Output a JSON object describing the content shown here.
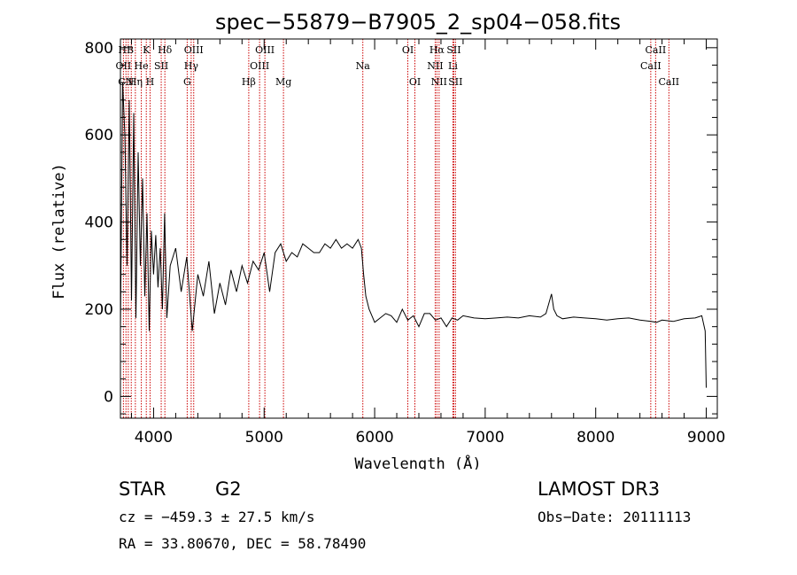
{
  "chart_data": {
    "type": "line",
    "title": "spec−55879−B7905_2_sp04−058.fits",
    "xlabel": "Wavelength (Å)",
    "ylabel": "Flux (relative)",
    "xlim": [
      3700,
      9100
    ],
    "ylim": [
      -50,
      820
    ],
    "x_ticks": [
      4000,
      5000,
      6000,
      7000,
      8000,
      9000
    ],
    "y_ticks": [
      0,
      200,
      400,
      600,
      800
    ],
    "series": [
      {
        "name": "flux",
        "x": [
          3700,
          3720,
          3740,
          3760,
          3780,
          3800,
          3820,
          3840,
          3860,
          3880,
          3900,
          3920,
          3940,
          3960,
          3980,
          4000,
          4020,
          4040,
          4060,
          4080,
          4100,
          4120,
          4150,
          4200,
          4250,
          4300,
          4350,
          4400,
          4450,
          4500,
          4550,
          4600,
          4650,
          4700,
          4750,
          4800,
          4850,
          4900,
          4950,
          5000,
          5050,
          5100,
          5150,
          5200,
          5250,
          5300,
          5350,
          5400,
          5450,
          5500,
          5550,
          5600,
          5650,
          5700,
          5750,
          5800,
          5850,
          5880,
          5900,
          5920,
          5950,
          6000,
          6050,
          6100,
          6150,
          6200,
          6250,
          6300,
          6350,
          6400,
          6450,
          6500,
          6550,
          6600,
          6650,
          6700,
          6750,
          6800,
          6900,
          7000,
          7100,
          7200,
          7300,
          7400,
          7500,
          7550,
          7600,
          7620,
          7650,
          7700,
          7800,
          7900,
          8000,
          8100,
          8200,
          8300,
          8400,
          8500,
          8550,
          8600,
          8700,
          8800,
          8900,
          8960,
          8990,
          9000
        ],
        "y": [
          150,
          720,
          600,
          300,
          680,
          220,
          650,
          180,
          560,
          300,
          500,
          230,
          420,
          150,
          380,
          280,
          370,
          250,
          340,
          200,
          420,
          180,
          300,
          340,
          240,
          320,
          150,
          280,
          230,
          310,
          190,
          260,
          210,
          290,
          240,
          300,
          260,
          310,
          290,
          330,
          240,
          330,
          350,
          310,
          330,
          320,
          350,
          340,
          330,
          330,
          350,
          340,
          360,
          340,
          350,
          340,
          360,
          340,
          280,
          230,
          200,
          170,
          180,
          190,
          185,
          170,
          200,
          175,
          185,
          160,
          190,
          190,
          175,
          180,
          160,
          180,
          175,
          185,
          180,
          178,
          180,
          182,
          180,
          185,
          182,
          190,
          235,
          200,
          185,
          178,
          182,
          180,
          178,
          175,
          178,
          180,
          175,
          172,
          170,
          175,
          172,
          178,
          180,
          185,
          150,
          20
        ]
      }
    ],
    "spectral_lines": [
      {
        "label": "HB",
        "wavelength": 3750,
        "row": 0
      },
      {
        "label": "K",
        "wavelength": 3934,
        "row": 0
      },
      {
        "label": "Hδ",
        "wavelength": 4102,
        "row": 0
      },
      {
        "label": "OIII",
        "wavelength": 4363,
        "row": 0
      },
      {
        "label": "OIII",
        "wavelength": 5007,
        "row": 0
      },
      {
        "label": "OI",
        "wavelength": 6300,
        "row": 0
      },
      {
        "label": "Hα",
        "wavelength": 6563,
        "row": 0
      },
      {
        "label": "SII",
        "wavelength": 6716,
        "row": 0
      },
      {
        "label": "CaII",
        "wavelength": 8542,
        "row": 0
      },
      {
        "label": "OII",
        "wavelength": 3727,
        "row": 1
      },
      {
        "label": "He",
        "wavelength": 3889,
        "row": 1
      },
      {
        "label": "SII",
        "wavelength": 4069,
        "row": 1
      },
      {
        "label": "Hγ",
        "wavelength": 4340,
        "row": 1
      },
      {
        "label": "OIII",
        "wavelength": 4959,
        "row": 1
      },
      {
        "label": "Na",
        "wavelength": 5893,
        "row": 1
      },
      {
        "label": "NII",
        "wavelength": 6548,
        "row": 1
      },
      {
        "label": "Li",
        "wavelength": 6708,
        "row": 1
      },
      {
        "label": "CaII",
        "wavelength": 8498,
        "row": 1
      },
      {
        "label": "CN",
        "wavelength": 3750,
        "row": 2
      },
      {
        "label": "Hη",
        "wavelength": 3835,
        "row": 2
      },
      {
        "label": "H",
        "wavelength": 3968,
        "row": 2
      },
      {
        "label": "G",
        "wavelength": 4304,
        "row": 2
      },
      {
        "label": "Hβ",
        "wavelength": 4861,
        "row": 2
      },
      {
        "label": "Mg",
        "wavelength": 5175,
        "row": 2
      },
      {
        "label": "OI",
        "wavelength": 6364,
        "row": 2
      },
      {
        "label": "NII",
        "wavelength": 6583,
        "row": 2
      },
      {
        "label": "SII",
        "wavelength": 6731,
        "row": 2
      },
      {
        "label": "CaII",
        "wavelength": 8662,
        "row": 2
      }
    ],
    "line_marker_wavelengths": [
      3727,
      3750,
      3771,
      3798,
      3835,
      3889,
      3934,
      3968,
      4069,
      4102,
      4304,
      4340,
      4363,
      4861,
      4959,
      5007,
      5175,
      5893,
      6300,
      6364,
      6548,
      6563,
      6583,
      6708,
      6716,
      6731,
      8498,
      8542,
      8662
    ],
    "line_color": "#000000",
    "marker_color": "#cc0000"
  },
  "info": {
    "object_class": "STAR",
    "subclass": "G2",
    "survey": "LAMOST DR3",
    "redshift": "cz = −459.3 ± 27.5 km/s",
    "obs_date": "Obs−Date: 20111113",
    "coords": "RA =  33.80670, DEC =  58.78490"
  }
}
